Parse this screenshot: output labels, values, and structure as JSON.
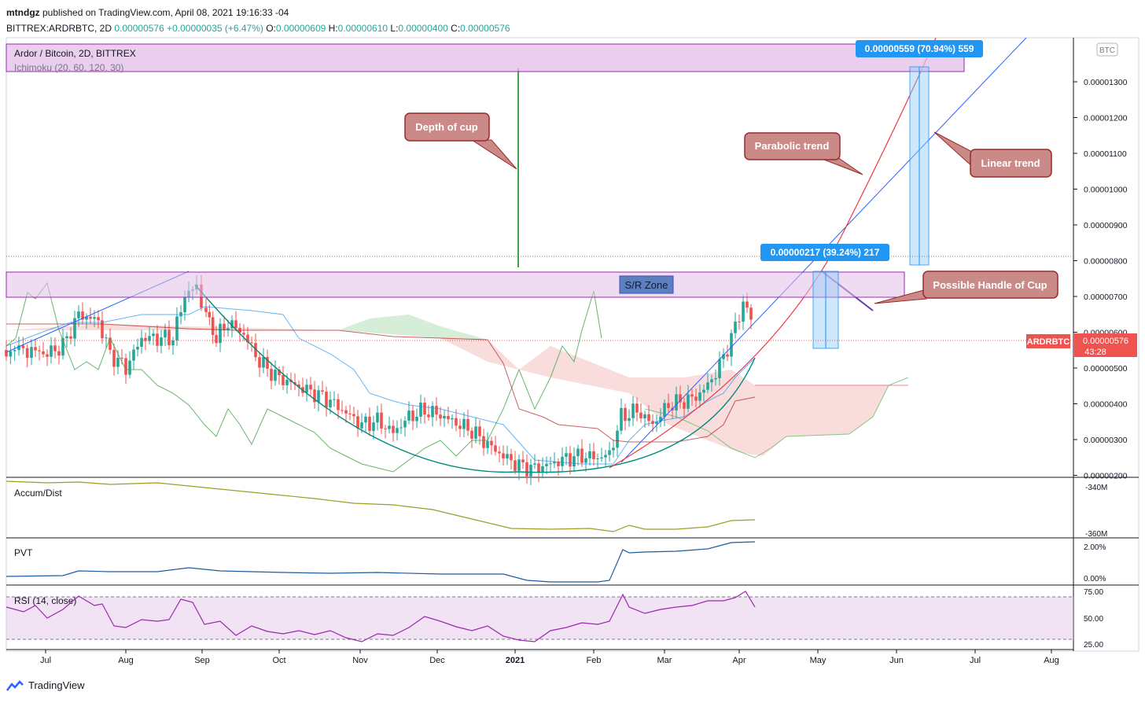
{
  "header": {
    "publisher": "mtndgz",
    "published_text": "published on TradingView.com, April 08, 2021 19:16:33 -04",
    "symbol": "BITTREX:ARDRBTC, 2D",
    "last": "0.00000576",
    "change": "+0.00000035 (+6.47%)",
    "o_label": "O:",
    "o": "0.00000609",
    "h_label": "H:",
    "h": "0.00000610",
    "l_label": "L:",
    "l": "0.00000400",
    "c_label": "C:",
    "c": "0.00000576"
  },
  "legend": {
    "title": "Ardor / Bitcoin, 2D, BITTREX",
    "indicator": "Ichimoku (20, 60, 120, 30)",
    "currency_badge": "BTC"
  },
  "annotations": {
    "depth": "Depth of cup",
    "parabolic": "Parabolic trend",
    "linear": "Linear trend",
    "handle": "Possible Handle of Cup",
    "sr_zone": "S/R Zone",
    "measure_top": "0.00000559 (70.94%) 559",
    "measure_mid": "0.00000217 (39.24%) 217",
    "price_tag_symbol": "ARDRBTC",
    "price_tag_value": "0.00000576",
    "price_tag_time": "43:28"
  },
  "chart_data": [
    {
      "type": "candlestick",
      "title": "Ardor / Bitcoin, 2D, BITTREX",
      "x_tick_labels": [
        "Jul",
        "Aug",
        "Sep",
        "Oct",
        "Nov",
        "Dec",
        "2021",
        "Feb",
        "Mar",
        "Apr",
        "May",
        "Jun",
        "Jul",
        "Aug"
      ],
      "y_tick_labels": [
        "0.00001300",
        "0.00001200",
        "0.00001100",
        "0.00001000",
        "0.00000900",
        "0.00000800",
        "0.00000700",
        "0.00000600",
        "0.00000500",
        "0.00000400",
        "0.00000300",
        "0.00000200"
      ],
      "ylim": [
        1.9e-06,
        1.41e-05
      ],
      "last_price": 5.76e-06,
      "close_approx": [
        [
          "Jul",
          5.5e-06
        ],
        [
          "Jul",
          6e-06
        ],
        [
          "Aug",
          5.8e-06
        ],
        [
          "Aug",
          5e-06
        ],
        [
          "Sep",
          7.2e-06
        ],
        [
          "Sep",
          6.2e-06
        ],
        [
          "Oct",
          4.7e-06
        ],
        [
          "Oct",
          4e-06
        ],
        [
          "Nov",
          3.3e-06
        ],
        [
          "Nov",
          3.7e-06
        ],
        [
          "Dec",
          3.8e-06
        ],
        [
          "Dec",
          3.2e-06
        ],
        [
          "2021",
          2.1e-06
        ],
        [
          "2021",
          2.3e-06
        ],
        [
          "Feb",
          2.5e-06
        ],
        [
          "Feb",
          4e-06
        ],
        [
          "Mar",
          4.2e-06
        ],
        [
          "Mar",
          5e-06
        ],
        [
          "Apr",
          7.1e-06
        ],
        [
          "Apr",
          5.76e-06
        ]
      ]
    },
    {
      "type": "line",
      "title": "Accum/Dist",
      "y_tick_labels": [
        "-340M",
        "-360M"
      ]
    },
    {
      "type": "line",
      "title": "PVT",
      "y_tick_labels": [
        "2.00%",
        "0.00%"
      ]
    },
    {
      "type": "line",
      "title": "RSI (14, close)",
      "y_tick_labels": [
        "75.00",
        "50.00",
        "25.00"
      ]
    }
  ],
  "footer": {
    "brand": "TradingView"
  },
  "colors": {
    "up": "#26a69a",
    "down": "#ef5350",
    "purple": "#9c27b0",
    "blue": "#2962ff"
  }
}
